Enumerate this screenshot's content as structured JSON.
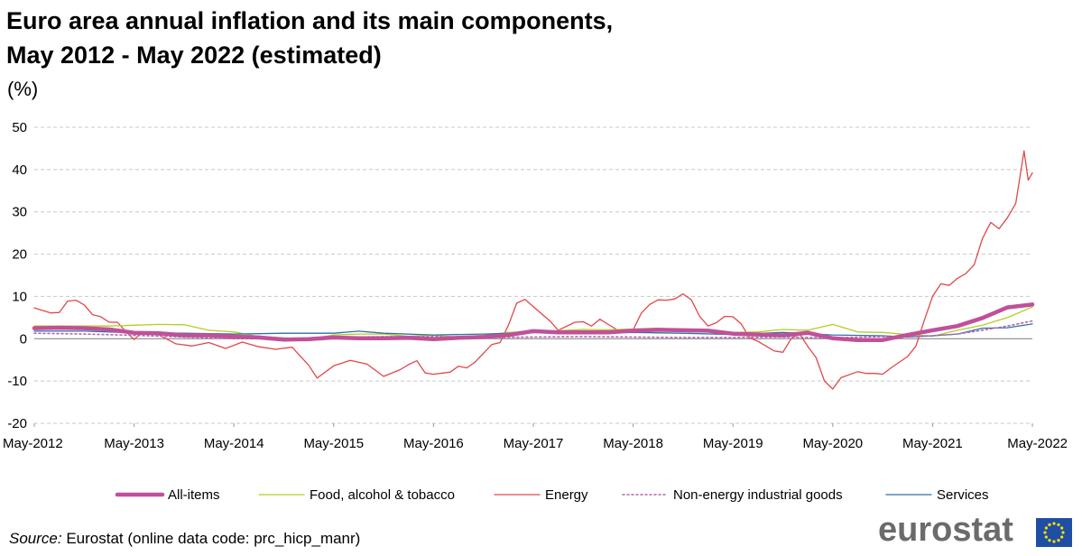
{
  "title_line1": "Euro area annual inflation and its main components,",
  "title_line2": "May 2012 - May 2022 (estimated)",
  "unit": "(%)",
  "source_label": "Source:",
  "source_text": " Eurostat (online data code: prc_hicp_manr)",
  "logo_text": "eurostat",
  "colors": {
    "all_items": "#c0509a",
    "food": "#b6cc22",
    "energy": "#e0474b",
    "non_energy": "#b56bb0",
    "services": "#2e6fa6",
    "grid": "#c8c8c8"
  },
  "chart_data": {
    "type": "line",
    "title": "Euro area annual inflation and its main components, May 2012 - May 2022 (estimated)",
    "ylabel": "(%)",
    "xlabel": "",
    "ylim": [
      -20,
      50
    ],
    "yticks": [
      -20,
      -10,
      0,
      10,
      20,
      30,
      40,
      50
    ],
    "xlim_months": [
      0,
      120
    ],
    "xtick_labels": [
      "May-2012",
      "May-2013",
      "May-2014",
      "May-2015",
      "May-2016",
      "May-2017",
      "May-2018",
      "May-2019",
      "May-2020",
      "May-2021",
      "May-2022"
    ],
    "legend_position": "bottom",
    "series": [
      {
        "key": "all_items",
        "name": "All-items",
        "style": "thick",
        "points": [
          [
            0,
            2.5
          ],
          [
            3,
            2.6
          ],
          [
            6,
            2.5
          ],
          [
            9,
            2.2
          ],
          [
            12,
            1.4
          ],
          [
            15,
            1.3
          ],
          [
            18,
            0.8
          ],
          [
            21,
            0.8
          ],
          [
            24,
            0.5
          ],
          [
            27,
            0.3
          ],
          [
            30,
            -0.2
          ],
          [
            33,
            -0.1
          ],
          [
            36,
            0.3
          ],
          [
            39,
            0.1
          ],
          [
            42,
            0.1
          ],
          [
            45,
            0.2
          ],
          [
            48,
            -0.1
          ],
          [
            51,
            0.2
          ],
          [
            54,
            0.4
          ],
          [
            57,
            0.9
          ],
          [
            60,
            1.8
          ],
          [
            63,
            1.5
          ],
          [
            66,
            1.5
          ],
          [
            69,
            1.5
          ],
          [
            72,
            1.9
          ],
          [
            75,
            2.1
          ],
          [
            78,
            2.0
          ],
          [
            81,
            1.9
          ],
          [
            84,
            1.2
          ],
          [
            87,
            1.0
          ],
          [
            90,
            0.8
          ],
          [
            93,
            1.4
          ],
          [
            96,
            0.1
          ],
          [
            99,
            -0.3
          ],
          [
            102,
            -0.3
          ],
          [
            105,
            0.9
          ],
          [
            108,
            2.0
          ],
          [
            111,
            3.0
          ],
          [
            114,
            4.9
          ],
          [
            117,
            7.4
          ],
          [
            120,
            8.1
          ]
        ]
      },
      {
        "key": "food",
        "name": "Food, alcohol & tobacco",
        "style": "thin",
        "points": [
          [
            0,
            3.0
          ],
          [
            3,
            3.0
          ],
          [
            6,
            3.0
          ],
          [
            9,
            3.0
          ],
          [
            12,
            3.2
          ],
          [
            15,
            3.4
          ],
          [
            18,
            3.3
          ],
          [
            21,
            2.0
          ],
          [
            24,
            1.6
          ],
          [
            27,
            0.5
          ],
          [
            30,
            0.2
          ],
          [
            33,
            -0.1
          ],
          [
            36,
            0.9
          ],
          [
            39,
            1.1
          ],
          [
            42,
            1.1
          ],
          [
            45,
            0.6
          ],
          [
            48,
            0.8
          ],
          [
            51,
            0.4
          ],
          [
            54,
            0.8
          ],
          [
            57,
            1.5
          ],
          [
            60,
            1.7
          ],
          [
            63,
            1.9
          ],
          [
            66,
            2.2
          ],
          [
            69,
            2.1
          ],
          [
            72,
            2.3
          ],
          [
            75,
            2.5
          ],
          [
            78,
            2.1
          ],
          [
            81,
            1.6
          ],
          [
            84,
            1.5
          ],
          [
            87,
            1.6
          ],
          [
            90,
            2.2
          ],
          [
            93,
            2.0
          ],
          [
            96,
            3.4
          ],
          [
            99,
            1.6
          ],
          [
            102,
            1.5
          ],
          [
            105,
            1.0
          ],
          [
            108,
            0.6
          ],
          [
            111,
            2.0
          ],
          [
            114,
            3.2
          ],
          [
            117,
            5.0
          ],
          [
            120,
            7.5
          ]
        ]
      },
      {
        "key": "energy",
        "name": "Energy",
        "style": "thin",
        "points": [
          [
            0,
            7.3
          ],
          [
            2,
            6.1
          ],
          [
            3,
            6.2
          ],
          [
            4,
            8.9
          ],
          [
            5,
            9.1
          ],
          [
            6,
            8.0
          ],
          [
            7,
            5.7
          ],
          [
            8,
            5.2
          ],
          [
            9,
            3.9
          ],
          [
            10,
            3.9
          ],
          [
            11,
            1.7
          ],
          [
            12,
            -0.2
          ],
          [
            13,
            1.6
          ],
          [
            15,
            0.9
          ],
          [
            17,
            -1.2
          ],
          [
            19,
            -1.7
          ],
          [
            21,
            -0.9
          ],
          [
            23,
            -2.3
          ],
          [
            25,
            -0.8
          ],
          [
            27,
            -1.9
          ],
          [
            29,
            -2.5
          ],
          [
            31,
            -2.0
          ],
          [
            33,
            -6.3
          ],
          [
            34,
            -9.3
          ],
          [
            36,
            -6.4
          ],
          [
            38,
            -5.1
          ],
          [
            40,
            -6.0
          ],
          [
            42,
            -8.9
          ],
          [
            44,
            -7.3
          ],
          [
            45,
            -6.1
          ],
          [
            46,
            -5.2
          ],
          [
            47,
            -8.1
          ],
          [
            48,
            -8.4
          ],
          [
            50,
            -7.9
          ],
          [
            51,
            -6.5
          ],
          [
            52,
            -6.9
          ],
          [
            53,
            -5.5
          ],
          [
            55,
            -1.4
          ],
          [
            56,
            -0.9
          ],
          [
            57,
            3.2
          ],
          [
            58,
            8.4
          ],
          [
            59,
            9.3
          ],
          [
            60,
            7.6
          ],
          [
            62,
            4.2
          ],
          [
            63,
            2.0
          ],
          [
            65,
            3.9
          ],
          [
            66,
            4.0
          ],
          [
            67,
            3.0
          ],
          [
            68,
            4.6
          ],
          [
            70,
            2.2
          ],
          [
            71,
            2.1
          ],
          [
            72,
            2.1
          ],
          [
            73,
            6.1
          ],
          [
            74,
            8.1
          ],
          [
            75,
            9.2
          ],
          [
            76,
            9.1
          ],
          [
            77,
            9.4
          ],
          [
            78,
            10.6
          ],
          [
            79,
            9.2
          ],
          [
            80,
            5.3
          ],
          [
            81,
            3.0
          ],
          [
            82,
            3.8
          ],
          [
            83,
            5.3
          ],
          [
            84,
            5.2
          ],
          [
            85,
            3.5
          ],
          [
            86,
            0.2
          ],
          [
            87,
            -0.6
          ],
          [
            88,
            -1.8
          ],
          [
            89,
            -2.9
          ],
          [
            90,
            -3.2
          ],
          [
            91,
            0.0
          ],
          [
            92,
            1.2
          ],
          [
            93,
            -1.8
          ],
          [
            94,
            -4.5
          ],
          [
            95,
            -10.0
          ],
          [
            96,
            -11.9
          ],
          [
            97,
            -9.2
          ],
          [
            99,
            -7.8
          ],
          [
            100,
            -8.2
          ],
          [
            101,
            -8.2
          ],
          [
            102,
            -8.4
          ],
          [
            103,
            -6.9
          ],
          [
            105,
            -4.2
          ],
          [
            106,
            -1.7
          ],
          [
            107,
            4.3
          ],
          [
            108,
            10.0
          ],
          [
            109,
            13.0
          ],
          [
            110,
            12.6
          ],
          [
            111,
            14.3
          ],
          [
            112,
            15.4
          ],
          [
            113,
            17.5
          ],
          [
            114,
            23.7
          ],
          [
            115,
            27.5
          ],
          [
            116,
            26.0
          ],
          [
            117,
            28.6
          ],
          [
            118,
            32.0
          ],
          [
            119,
            44.4
          ],
          [
            119.5,
            37.5
          ],
          [
            120,
            39.2
          ]
        ]
      },
      {
        "key": "non_energy",
        "name": "Non-energy industrial goods",
        "style": "dotted",
        "points": [
          [
            0,
            1.3
          ],
          [
            6,
            1.1
          ],
          [
            12,
            0.8
          ],
          [
            18,
            0.4
          ],
          [
            24,
            0.0
          ],
          [
            30,
            0.0
          ],
          [
            36,
            0.3
          ],
          [
            42,
            0.5
          ],
          [
            48,
            0.5
          ],
          [
            54,
            0.3
          ],
          [
            60,
            0.4
          ],
          [
            66,
            0.5
          ],
          [
            72,
            0.4
          ],
          [
            78,
            0.3
          ],
          [
            84,
            0.3
          ],
          [
            90,
            0.4
          ],
          [
            96,
            0.2
          ],
          [
            102,
            0.5
          ],
          [
            105,
            0.5
          ],
          [
            108,
            0.7
          ],
          [
            111,
            1.1
          ],
          [
            114,
            2.0
          ],
          [
            117,
            3.0
          ],
          [
            120,
            4.2
          ]
        ]
      },
      {
        "key": "services",
        "name": "Services",
        "style": "thin",
        "points": [
          [
            0,
            1.8
          ],
          [
            6,
            1.8
          ],
          [
            12,
            1.4
          ],
          [
            18,
            1.3
          ],
          [
            24,
            1.1
          ],
          [
            30,
            1.3
          ],
          [
            36,
            1.3
          ],
          [
            39,
            1.8
          ],
          [
            42,
            1.3
          ],
          [
            48,
            0.9
          ],
          [
            54,
            1.1
          ],
          [
            60,
            1.5
          ],
          [
            66,
            1.4
          ],
          [
            72,
            1.5
          ],
          [
            78,
            1.3
          ],
          [
            84,
            1.0
          ],
          [
            90,
            1.5
          ],
          [
            96,
            0.9
          ],
          [
            102,
            0.7
          ],
          [
            105,
            0.4
          ],
          [
            108,
            0.7
          ],
          [
            111,
            1.1
          ],
          [
            114,
            2.5
          ],
          [
            117,
            2.6
          ],
          [
            120,
            3.5
          ]
        ]
      }
    ]
  }
}
